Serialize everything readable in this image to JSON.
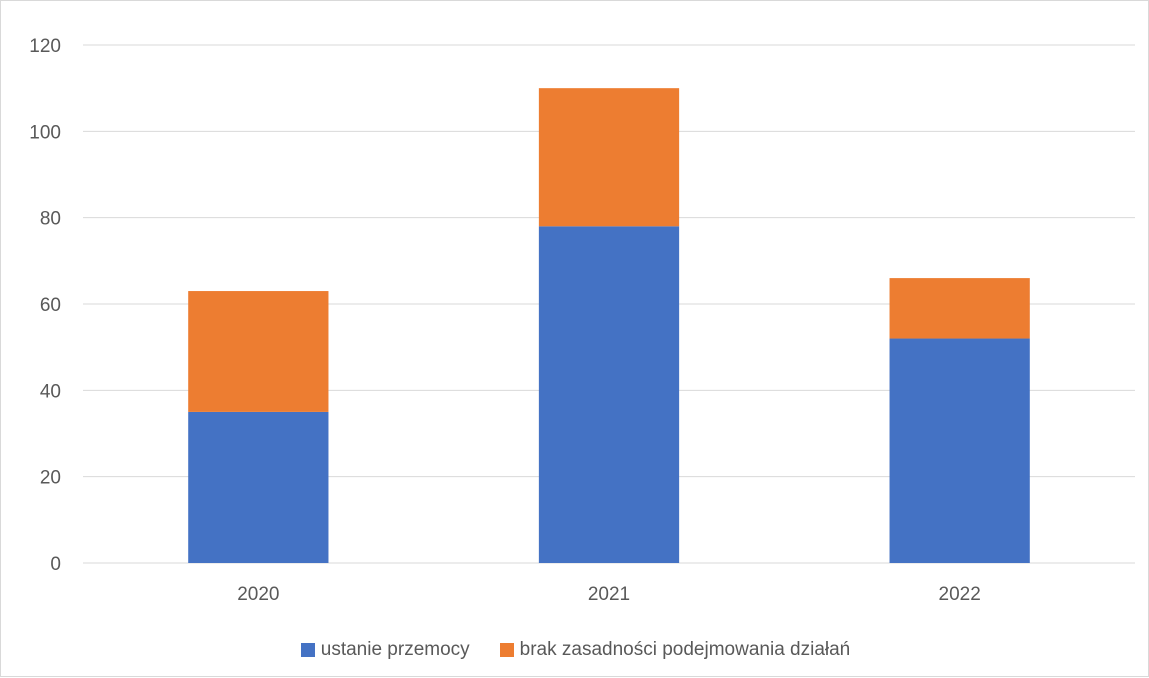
{
  "chart_data": {
    "type": "bar",
    "stacked": true,
    "categories": [
      "2020",
      "2021",
      "2022"
    ],
    "series": [
      {
        "name": "ustanie przemocy",
        "color": "#4472C4",
        "values": [
          35,
          78,
          52
        ]
      },
      {
        "name": "brak zasadności podejmowania działań",
        "color": "#ED7D31",
        "values": [
          28,
          32,
          14
        ]
      }
    ],
    "ylim": [
      0,
      120
    ],
    "yticks": [
      0,
      20,
      40,
      60,
      80,
      100,
      120
    ],
    "title": "",
    "xlabel": "",
    "ylabel": "",
    "grid": true,
    "legend_position": "bottom",
    "gridline_color": "#d9d9d9"
  }
}
